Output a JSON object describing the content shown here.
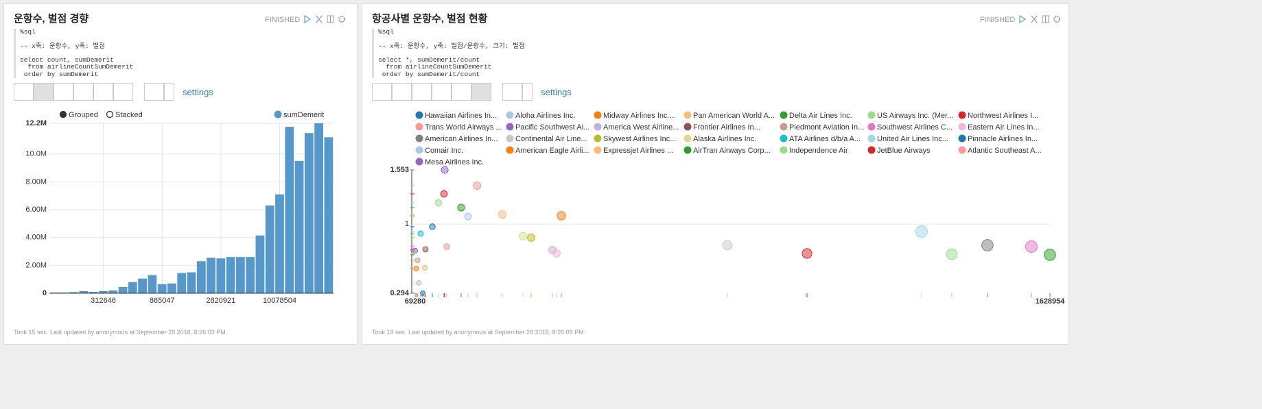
{
  "paragraphs": [
    {
      "title": "운항수, 벌점 경향",
      "status": "FINISHED",
      "code": "%sql\n\n-- x축: 운항수, y축: 벌점\n\nselect count, sumDemerit\n  from airlineCountSumDemerit\n order by sumDemerit",
      "settings": "settings",
      "footer": "Took 15 sec. Last updated by anonymous at September 28 2018, 8:26:03 PM.",
      "chart_data": {
        "type": "bar",
        "legend_modes": [
          "Grouped",
          "Stacked"
        ],
        "categories": [
          null,
          null,
          null,
          null,
          null,
          "312646",
          null,
          null,
          null,
          null,
          null,
          "865047",
          null,
          null,
          null,
          null,
          null,
          "2820921",
          null,
          null,
          null,
          null,
          null,
          "10078504",
          null,
          null,
          null,
          null,
          null
        ],
        "series": [
          {
            "name": "sumDemerit",
            "color": "#5698cb",
            "values": [
              50000,
              50000,
              80000,
              150000,
              100000,
              150000,
              200000,
              450000,
              800000,
              1050000,
              1300000,
              650000,
              700000,
              1450000,
              1500000,
              2300000,
              2550000,
              2500000,
              2600000,
              2600000,
              2600000,
              4150000,
              6300000,
              7100000,
              11950000,
              9500000,
              11500000,
              12200000,
              11200000
            ]
          }
        ],
        "ylim": [
          0,
          12200000
        ],
        "yticks": [
          0,
          {
            "value": 2000000,
            "label": "2.00M"
          },
          {
            "value": 4000000,
            "label": "4.00M"
          },
          {
            "value": 6000000,
            "label": "6.00M"
          },
          {
            "value": 8000000,
            "label": "8.00M"
          },
          {
            "value": 10000000,
            "label": "10.0M"
          },
          {
            "value": 12200000,
            "label": "12.2M"
          }
        ],
        "grid": true
      }
    },
    {
      "title": "항공사별 운항수, 벌점 현황",
      "status": "FINISHED",
      "code": "%sql\n\n-- x축: 운항수, y축: 벌점/운항수, 크기: 벌점\n\nselect *, sumDemerit/count\n  from airlineCountSumDemerit\n order by sumDemerit/count",
      "settings": "settings",
      "footer": "Took 19 sec. Last updated by anonymous at September 28 2018, 8:26:09 PM.",
      "chart_data": {
        "type": "scatter",
        "xlim": [
          69280,
          1628954
        ],
        "ylim": [
          0.294,
          1.553
        ],
        "xticks": [
          69280,
          1628954
        ],
        "yticks": [
          0.294,
          1,
          1.553
        ],
        "grid": true,
        "series": [
          {
            "name": "Hawaiian Airlines In...",
            "color": "#1f77b4",
            "x": [
              87830
            ],
            "values": [
              0.294
            ],
            "sizes": [
              25800
            ]
          },
          {
            "name": "Aloha Airlines Inc.",
            "color": "#aec7e8",
            "x": [
              77710
            ],
            "values": [
              0.399
            ],
            "sizes": [
              31000
            ]
          },
          {
            "name": "Midway Airlines Inc....",
            "color": "#ff7f0e",
            "x": [
              72000
            ],
            "values": [
              0.546
            ],
            "sizes": [
              39300
            ]
          },
          {
            "name": "Pan American World A...",
            "color": "#ffbb78",
            "x": [
              92880
            ],
            "values": [
              0.553
            ],
            "sizes": [
              51400
            ]
          },
          {
            "name": "Delta Air Lines Inc.",
            "color": "#2ca02c",
            "x": [
              1628954
            ],
            "values": [
              0.686
            ],
            "sizes": [
              1117500
            ]
          },
          {
            "name": "US Airways Inc. (Mer...",
            "color": "#98df8a",
            "x": [
              1387730
            ],
            "values": [
              0.693
            ],
            "sizes": [
              961700
            ]
          },
          {
            "name": "Northwest Airlines I...",
            "color": "#d62728",
            "x": [
              1031990
            ],
            "values": [
              0.7
            ],
            "sizes": [
              722400
            ]
          },
          {
            "name": "Trans World Airways ...",
            "color": "#ff9896",
            "x": [
              146840
            ],
            "values": [
              0.77
            ],
            "sizes": [
              113100
            ]
          },
          {
            "name": "Pacific Southwest Ai...",
            "color": "#9467bd",
            "x": [
              69280
            ],
            "values": [
              0.728
            ],
            "sizes": [
              50400
            ]
          },
          {
            "name": "America West Airline...",
            "color": "#c5b0d5",
            "x": [
              406480
            ],
            "values": [
              0.735
            ],
            "sizes": [
              298800
            ]
          },
          {
            "name": "Frontier Airlines In...",
            "color": "#8c564b",
            "x": [
              94570
            ],
            "values": [
              0.742
            ],
            "sizes": [
              70200
            ]
          },
          {
            "name": "Piedmont Aviation In...",
            "color": "#c49c94",
            "x": [
              75000
            ],
            "values": [
              0.63
            ],
            "sizes": [
              47300
            ]
          },
          {
            "name": "Southwest Airlines C...",
            "color": "#e377c2",
            "x": [
              1583310
            ],
            "values": [
              0.77
            ],
            "sizes": [
              1219100
            ]
          },
          {
            "name": "Eastern Air Lines In...",
            "color": "#f7b6d2",
            "x": [
              416600
            ],
            "values": [
              0.7
            ],
            "sizes": [
              291600
            ]
          },
          {
            "name": "American Airlines In...",
            "color": "#7f7f7f",
            "x": [
              1475400
            ],
            "values": [
              0.784
            ],
            "sizes": [
              1156700
            ]
          },
          {
            "name": "Continental Air Line...",
            "color": "#c7c7c7",
            "x": [
              836410
            ],
            "values": [
              0.784
            ],
            "sizes": [
              655700
            ]
          },
          {
            "name": "Skywest Airlines Inc...",
            "color": "#bcbd22",
            "x": [
              354200
            ],
            "values": [
              0.861
            ],
            "sizes": [
              305000
            ]
          },
          {
            "name": "Alaska Airlines Inc.",
            "color": "#dbdb8d",
            "x": [
              333990
            ],
            "values": [
              0.875
            ],
            "sizes": [
              292200
            ]
          },
          {
            "name": "ATA Airlines d/b/a A...",
            "color": "#17becf",
            "x": [
              82770
            ],
            "values": [
              0.903
            ],
            "sizes": [
              74700
            ]
          },
          {
            "name": "United Air Lines Inc...",
            "color": "#9edae5",
            "x": [
              1313550
            ],
            "values": [
              0.924
            ],
            "sizes": [
              1213700
            ]
          },
          {
            "name": "Pinnacle Airlines In...",
            "color": "#1f77b4",
            "x": [
              111400
            ],
            "values": [
              0.973
            ],
            "sizes": [
              108400
            ]
          },
          {
            "name": "Comair Inc.",
            "color": "#aec7e8",
            "x": [
              199100
            ],
            "values": [
              1.077
            ],
            "sizes": [
              214400
            ]
          },
          {
            "name": "American Eagle Airli...",
            "color": "#ff7f0e",
            "x": [
              428400
            ],
            "values": [
              1.085
            ],
            "sizes": [
              464800
            ]
          },
          {
            "name": "Expressjet Airlines ...",
            "color": "#ffbb78",
            "x": [
              283400
            ],
            "values": [
              1.098
            ],
            "sizes": [
              311200
            ]
          },
          {
            "name": "AirTran Airways Corp...",
            "color": "#2ca02c",
            "x": [
              182240
            ],
            "values": [
              1.168
            ],
            "sizes": [
              212900
            ]
          },
          {
            "name": "Independence Air",
            "color": "#98df8a",
            "x": [
              126600
            ],
            "values": [
              1.217
            ],
            "sizes": [
              154100
            ]
          },
          {
            "name": "JetBlue Airways",
            "color": "#d62728",
            "x": [
              140090
            ],
            "values": [
              1.308
            ],
            "sizes": [
              183200
            ]
          },
          {
            "name": "Atlantic Southeast A...",
            "color": "#ff9896",
            "x": [
              221020
            ],
            "values": [
              1.392
            ],
            "sizes": [
              307700
            ]
          },
          {
            "name": "Mesa Airlines Inc.",
            "color": "#9467bd",
            "x": [
              141800
            ],
            "values": [
              1.553
            ],
            "sizes": [
              220200
            ]
          }
        ]
      }
    }
  ]
}
